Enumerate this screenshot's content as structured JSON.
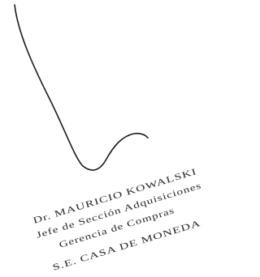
{
  "stamp": {
    "lines": [
      "Dr. MAURICIO KOWALSKI",
      "Jefe de Sección Adquisiciones",
      "Gerencia de Compras",
      "S.E. CASA DE MONEDA"
    ]
  }
}
